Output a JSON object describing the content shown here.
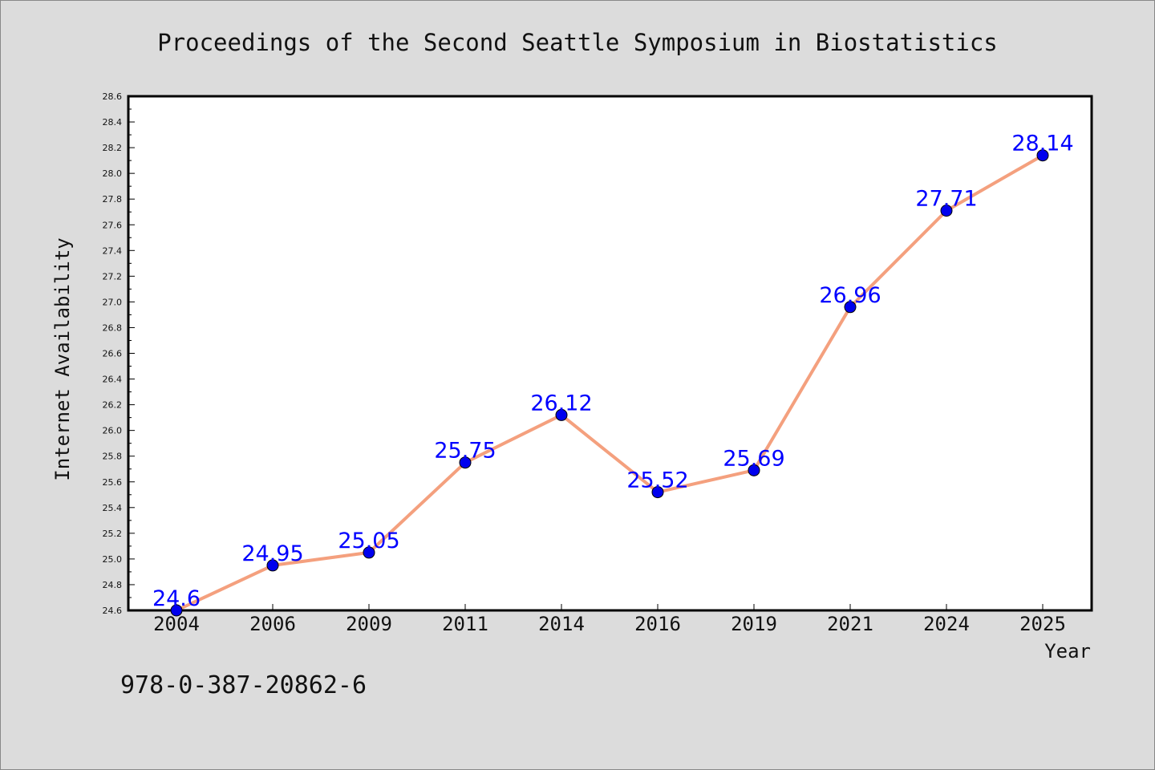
{
  "chart_data": {
    "type": "line",
    "title": "Proceedings of the Second Seattle Symposium in Biostatistics",
    "xlabel": "Year",
    "ylabel": "Internet Availability",
    "categories": [
      "2004",
      "2006",
      "2009",
      "2011",
      "2014",
      "2016",
      "2019",
      "2021",
      "2024",
      "2025"
    ],
    "series": [
      {
        "values": [
          24.6,
          24.95,
          25.05,
          25.75,
          26.12,
          25.52,
          25.69,
          26.96,
          27.71,
          28.14
        ]
      }
    ],
    "data_labels": [
      "24.6",
      "24.95",
      "25.05",
      "25.75",
      "26.12",
      "25.52",
      "25.69",
      "26.96",
      "27.71",
      "28.14"
    ],
    "ylim": [
      24.6,
      28.6
    ],
    "yticks": [
      "24.6",
      "24.8",
      "25.0",
      "25.2",
      "25.4",
      "25.6",
      "25.8",
      "26.0",
      "26.2",
      "26.4",
      "26.6",
      "26.8",
      "27.0",
      "27.2",
      "27.4",
      "27.6",
      "27.8",
      "28.0",
      "28.2",
      "28.4",
      "28.6"
    ],
    "grid": false,
    "legend": "none",
    "colors": {
      "line": "#f4a07e",
      "marker": "#0000ee",
      "data_label": "#0000ff",
      "background": "#dcdcdc",
      "plot_background": "#ffffff"
    }
  },
  "footer": {
    "isbn": "978-0-387-20862-6"
  }
}
